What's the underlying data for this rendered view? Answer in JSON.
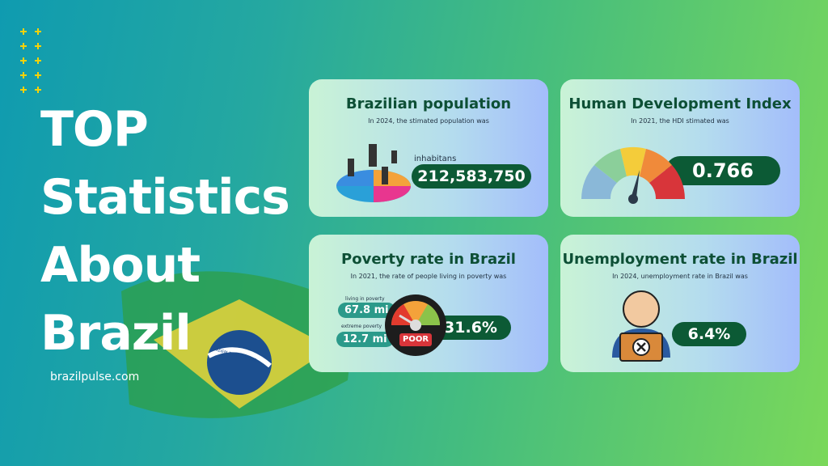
{
  "headline": {
    "lines": [
      "TOP",
      "Statistics",
      "About",
      "Brazil"
    ],
    "site": "brazilpulse.com"
  },
  "flag": {
    "motto": "ORDEM E PROGRESSO"
  },
  "cards": [
    {
      "title": "Brazilian population",
      "subtitle": "In 2024, the stimated population was",
      "label": "inhabitans",
      "value": "212,583,750"
    },
    {
      "title": "Human Development Index",
      "subtitle": "In 2021, the HDI stimated was",
      "value": "0.766"
    },
    {
      "title": "Poverty rate in Brazil",
      "subtitle": "In 2021, the rate of people living in poverty was",
      "items": [
        {
          "label": "living in poverty",
          "value": "67.8 mi"
        },
        {
          "label": "extreme poverty",
          "value": "12.7 mi"
        }
      ],
      "gauge_label": "POOR",
      "value": "31.6%"
    },
    {
      "title": "Unemployment rate in Brazil",
      "subtitle": "In 2024, unemployment rate in Brazil was",
      "value": "6.4%"
    }
  ]
}
